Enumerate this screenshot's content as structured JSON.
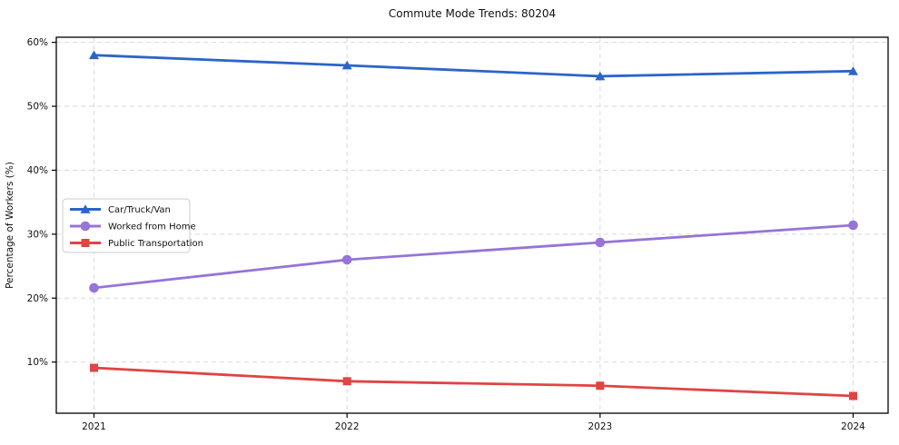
{
  "chart_data": {
    "type": "line",
    "title": "Commute Mode Trends: 80204",
    "xlabel": "",
    "ylabel": "Percentage of Workers (%)",
    "x": [
      2021,
      2022,
      2023,
      2024
    ],
    "x_tick_labels": [
      "2021",
      "2022",
      "2023",
      "2024"
    ],
    "y_ticks": [
      10,
      20,
      30,
      40,
      50,
      60
    ],
    "y_tick_labels": [
      "10%",
      "20%",
      "30%",
      "40%",
      "50%",
      "60%"
    ],
    "ylim": [
      2.0,
      60.8
    ],
    "grid": true,
    "grid_style": "dashed",
    "legend_position": "center-left",
    "axis_color": "#000000",
    "grid_color": "#d9d9d9",
    "series": [
      {
        "name": "Car/Truck/Van",
        "color": "#2b65c8",
        "marker": "triangle",
        "values": [
          58.0,
          56.4,
          54.7,
          55.5
        ]
      },
      {
        "name": "Worked from Home",
        "color": "#9674d8",
        "marker": "circle",
        "values": [
          21.6,
          26.0,
          28.7,
          31.4
        ]
      },
      {
        "name": "Public Transportation",
        "color": "#e04444",
        "marker": "square",
        "values": [
          9.1,
          7.0,
          6.3,
          4.7
        ]
      }
    ]
  }
}
